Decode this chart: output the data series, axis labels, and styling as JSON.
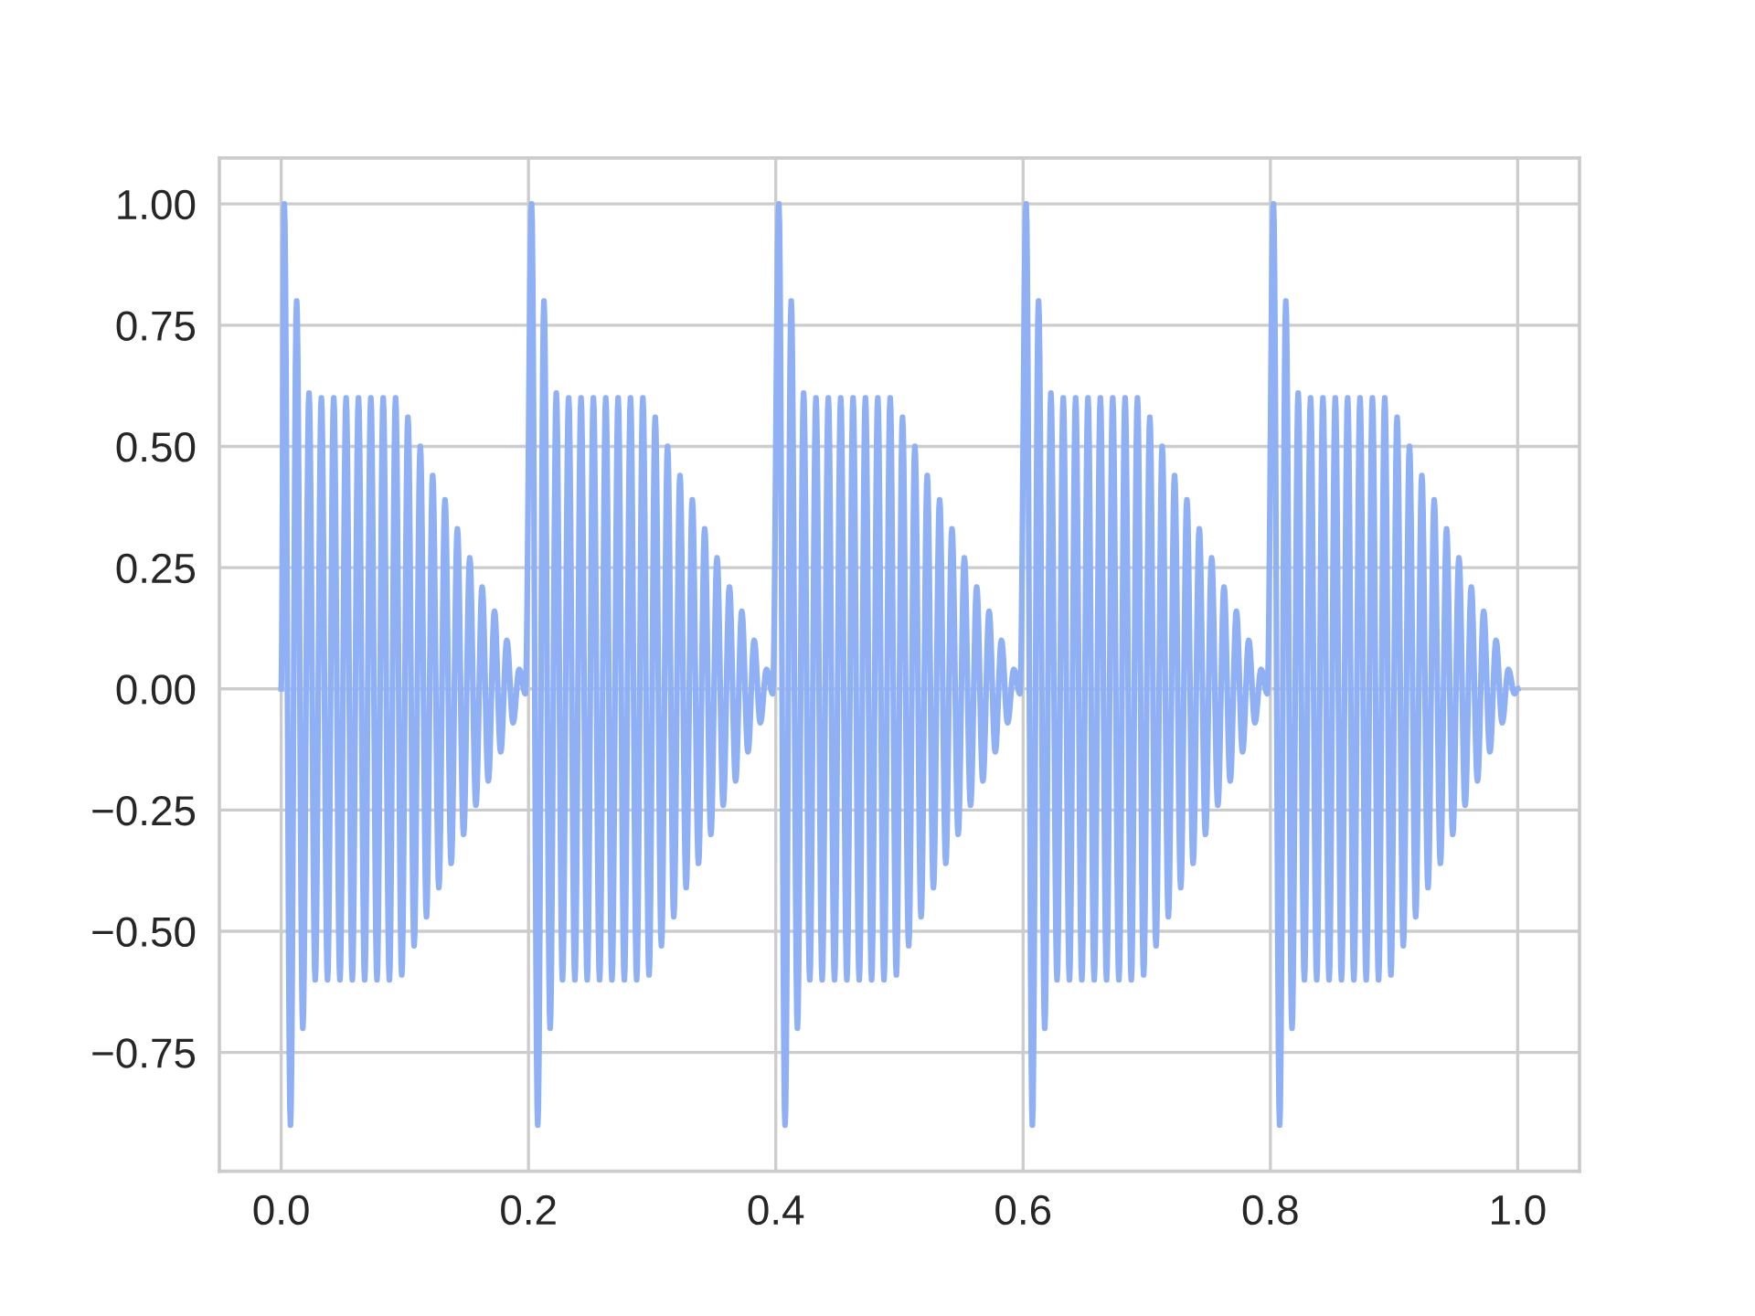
{
  "chart_data": {
    "type": "line",
    "xlim": [
      -0.05,
      1.05
    ],
    "ylim": [
      -0.995,
      1.095
    ],
    "xticks": [
      {
        "value": 0,
        "label": "0.0"
      },
      0.2,
      0.4,
      0.6,
      0.8,
      {
        "value": 1,
        "label": "1.0"
      }
    ],
    "yticks": [
      {
        "value": -0.75,
        "label": "−0.75"
      },
      {
        "value": -0.5,
        "label": "−0.50"
      },
      {
        "value": -0.25,
        "label": "−0.25"
      },
      {
        "value": 0,
        "label": "0.00"
      },
      {
        "value": 0.25,
        "label": "0.25"
      },
      {
        "value": 0.5,
        "label": "0.50"
      },
      {
        "value": 0.75,
        "label": "0.75"
      },
      {
        "value": 1,
        "label": "1.00"
      }
    ],
    "grid": true,
    "series": [
      {
        "color": "#8fb0f5",
        "x": [
          0.0,
          0.0025,
          0.0075,
          0.0125,
          0.0175,
          0.0225,
          0.0275,
          0.0325,
          0.0375,
          0.0425,
          0.0475,
          0.0525,
          0.0575,
          0.0625,
          0.0675,
          0.0725,
          0.0775,
          0.0825,
          0.0875,
          0.0925,
          0.0975,
          0.1025,
          0.1075,
          0.1125,
          0.1175,
          0.1225,
          0.1275,
          0.1325,
          0.1375,
          0.1425,
          0.1475,
          0.1525,
          0.1575,
          0.1625,
          0.1675,
          0.1725,
          0.1775,
          0.1825,
          0.1875,
          0.1925,
          0.1975,
          0.2025,
          0.2075,
          0.2125,
          0.2175,
          0.2225,
          0.2275,
          0.2325,
          0.2375,
          0.2425,
          0.2475,
          0.2525,
          0.2575,
          0.2625,
          0.2675,
          0.2725,
          0.2775,
          0.2825,
          0.2875,
          0.2925,
          0.2975,
          0.3025,
          0.3075,
          0.3125,
          0.3175,
          0.3225,
          0.3275,
          0.3325,
          0.3375,
          0.3425,
          0.3475,
          0.3525,
          0.3575,
          0.3625,
          0.3675,
          0.3725,
          0.3775,
          0.3825,
          0.3875,
          0.3925,
          0.3975,
          0.4025,
          0.4075,
          0.4125,
          0.4175,
          0.4225,
          0.4275,
          0.4325,
          0.4375,
          0.4425,
          0.4475,
          0.4525,
          0.4575,
          0.4625,
          0.4675,
          0.4725,
          0.4775,
          0.4825,
          0.4875,
          0.4925,
          0.4975,
          0.5025,
          0.5075,
          0.5125,
          0.5175,
          0.5225,
          0.5275,
          0.5325,
          0.5375,
          0.5425,
          0.5475,
          0.5525,
          0.5575,
          0.5625,
          0.5675,
          0.5725,
          0.5775,
          0.5825,
          0.5875,
          0.5925,
          0.5975,
          0.6025,
          0.6075,
          0.6125,
          0.6175,
          0.6225,
          0.6275,
          0.6325,
          0.6375,
          0.6425,
          0.6475,
          0.6525,
          0.6575,
          0.6625,
          0.6675,
          0.6725,
          0.6775,
          0.6825,
          0.6875,
          0.6925,
          0.6975,
          0.7025,
          0.7075,
          0.7125,
          0.7175,
          0.7225,
          0.7275,
          0.7325,
          0.7375,
          0.7425,
          0.7475,
          0.7525,
          0.7575,
          0.7625,
          0.7675,
          0.7725,
          0.7775,
          0.7825,
          0.7875,
          0.7925,
          0.7975,
          0.8025,
          0.8075,
          0.8125,
          0.8175,
          0.8225,
          0.8275,
          0.8325,
          0.8375,
          0.8425,
          0.8475,
          0.8525,
          0.8575,
          0.8625,
          0.8675,
          0.8725,
          0.8775,
          0.8825,
          0.8875,
          0.8925,
          0.8975,
          0.9025,
          0.9075,
          0.9125,
          0.9175,
          0.9225,
          0.9275,
          0.9325,
          0.9375,
          0.9425,
          0.9475,
          0.9525,
          0.9575,
          0.9625,
          0.9675,
          0.9725,
          0.9775,
          0.9825,
          0.9875,
          0.9925,
          0.9975,
          1.0
        ],
        "values": [
          0,
          1.0,
          -0.9,
          0.8,
          -0.7,
          0.61,
          -0.6,
          0.6,
          -0.6,
          0.6,
          -0.6,
          0.6,
          -0.6,
          0.6,
          -0.6,
          0.6,
          -0.6,
          0.6,
          -0.6,
          0.6,
          -0.59,
          0.56,
          -0.53,
          0.5,
          -0.47,
          0.44,
          -0.41,
          0.39,
          -0.36,
          0.33,
          -0.3,
          0.27,
          -0.24,
          0.21,
          -0.19,
          0.16,
          -0.13,
          0.1,
          -0.07,
          0.04,
          -0.01,
          1.0,
          -0.9,
          0.8,
          -0.7,
          0.61,
          -0.6,
          0.6,
          -0.6,
          0.6,
          -0.6,
          0.6,
          -0.6,
          0.6,
          -0.6,
          0.6,
          -0.6,
          0.6,
          -0.6,
          0.6,
          -0.59,
          0.56,
          -0.53,
          0.5,
          -0.47,
          0.44,
          -0.41,
          0.39,
          -0.36,
          0.33,
          -0.3,
          0.27,
          -0.24,
          0.21,
          -0.19,
          0.16,
          -0.13,
          0.1,
          -0.07,
          0.04,
          -0.01,
          1.0,
          -0.9,
          0.8,
          -0.7,
          0.61,
          -0.6,
          0.6,
          -0.6,
          0.6,
          -0.6,
          0.6,
          -0.6,
          0.6,
          -0.6,
          0.6,
          -0.6,
          0.6,
          -0.6,
          0.6,
          -0.59,
          0.56,
          -0.53,
          0.5,
          -0.47,
          0.44,
          -0.41,
          0.39,
          -0.36,
          0.33,
          -0.3,
          0.27,
          -0.24,
          0.21,
          -0.19,
          0.16,
          -0.13,
          0.1,
          -0.07,
          0.04,
          -0.01,
          1.0,
          -0.9,
          0.8,
          -0.7,
          0.61,
          -0.6,
          0.6,
          -0.6,
          0.6,
          -0.6,
          0.6,
          -0.6,
          0.6,
          -0.6,
          0.6,
          -0.6,
          0.6,
          -0.6,
          0.6,
          -0.59,
          0.56,
          -0.53,
          0.5,
          -0.47,
          0.44,
          -0.41,
          0.39,
          -0.36,
          0.33,
          -0.3,
          0.27,
          -0.24,
          0.21,
          -0.19,
          0.16,
          -0.13,
          0.1,
          -0.07,
          0.04,
          -0.01,
          1.0,
          -0.9,
          0.8,
          -0.7,
          0.61,
          -0.6,
          0.6,
          -0.6,
          0.6,
          -0.6,
          0.6,
          -0.6,
          0.6,
          -0.6,
          0.6,
          -0.6,
          0.6,
          -0.6,
          0.6,
          -0.59,
          0.56,
          -0.53,
          0.5,
          -0.47,
          0.44,
          -0.41,
          0.39,
          -0.36,
          0.33,
          -0.3,
          0.27,
          -0.24,
          0.21,
          -0.19,
          0.16,
          -0.13,
          0.1,
          -0.07,
          0.04,
          -0.01,
          0
        ]
      }
    ]
  }
}
